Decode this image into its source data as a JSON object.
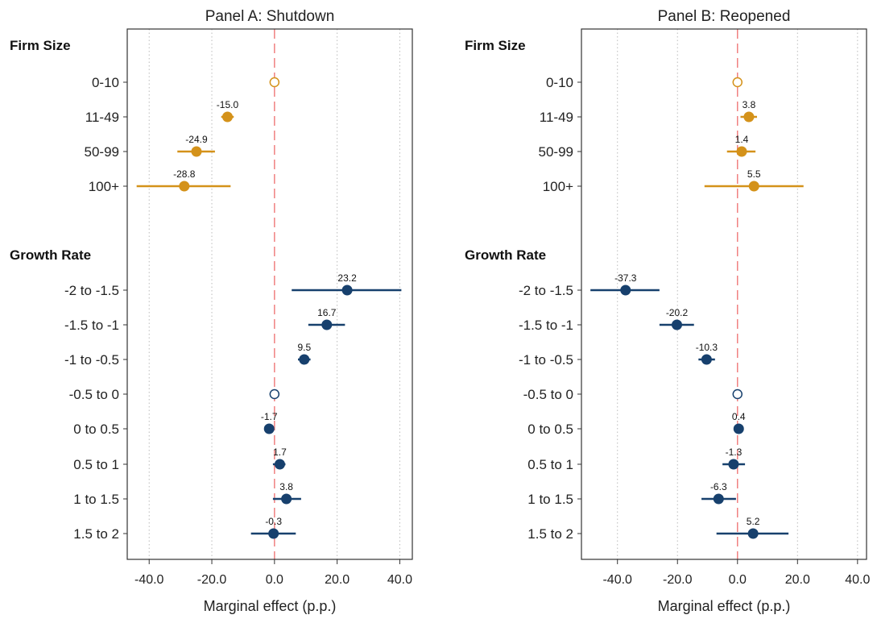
{
  "chart_data": [
    {
      "type": "scatter",
      "title": "Panel A: Shutdown",
      "xlabel": "Marginal effect (p.p.)",
      "xlim": [
        -47,
        44
      ],
      "xticks": [
        "-40.0",
        "-20.0",
        "0.0",
        "20.0",
        "40.0"
      ],
      "xtick_values": [
        -40,
        -20,
        0,
        20,
        40
      ],
      "reference_line": 0,
      "groups": [
        {
          "label": "Firm Size",
          "color": "#d4921a",
          "rows": [
            {
              "category": "0-10",
              "value": 0,
              "ci": [
                0,
                0
              ],
              "label": "",
              "reference": true
            },
            {
              "category": "11-49",
              "value": -15.0,
              "ci": [
                -17,
                -13
              ],
              "label": "-15.0",
              "reference": false
            },
            {
              "category": "50-99",
              "value": -24.9,
              "ci": [
                -31,
                -19
              ],
              "label": "-24.9",
              "reference": false
            },
            {
              "category": "100+",
              "value": -28.8,
              "ci": [
                -44,
                -14
              ],
              "label": "-28.8",
              "reference": false
            }
          ]
        },
        {
          "label": "Growth Rate",
          "color": "#17406d",
          "rows": [
            {
              "category": "-2 to -1.5",
              "value": 23.2,
              "ci": [
                5.5,
                40.5
              ],
              "label": "23.2",
              "reference": false
            },
            {
              "category": "-1.5 to -1",
              "value": 16.7,
              "ci": [
                10.8,
                22.5
              ],
              "label": "16.7",
              "reference": false
            },
            {
              "category": "-1 to -0.5",
              "value": 9.5,
              "ci": [
                7.5,
                11.5
              ],
              "label": "9.5",
              "reference": false
            },
            {
              "category": "-0.5 to 0",
              "value": 0,
              "ci": [
                0,
                0
              ],
              "label": "",
              "reference": true
            },
            {
              "category": "0 to 0.5",
              "value": -1.7,
              "ci": [
                -3,
                -0.4
              ],
              "label": "-1.7",
              "reference": false
            },
            {
              "category": "0.5 to 1",
              "value": 1.7,
              "ci": [
                -0.5,
                3.5
              ],
              "label": "1.7",
              "reference": false
            },
            {
              "category": "1 to 1.5",
              "value": 3.8,
              "ci": [
                -0.5,
                8.5
              ],
              "label": "3.8",
              "reference": false
            },
            {
              "category": "1.5 to 2",
              "value": -0.3,
              "ci": [
                -7.5,
                6.8
              ],
              "label": "-0.3",
              "reference": false
            }
          ]
        }
      ]
    },
    {
      "type": "scatter",
      "title": "Panel B: Reopened",
      "xlabel": "Marginal effect (p.p.)",
      "xlim": [
        -52,
        43
      ],
      "xticks": [
        "-40.0",
        "-20.0",
        "0.0",
        "20.0",
        "40.0"
      ],
      "xtick_values": [
        -40,
        -20,
        0,
        20,
        40
      ],
      "reference_line": 0,
      "groups": [
        {
          "label": "Firm Size",
          "color": "#d4921a",
          "rows": [
            {
              "category": "0-10",
              "value": 0,
              "ci": [
                0,
                0
              ],
              "label": "",
              "reference": true
            },
            {
              "category": "11-49",
              "value": 3.8,
              "ci": [
                1,
                6.5
              ],
              "label": "3.8",
              "reference": false
            },
            {
              "category": "50-99",
              "value": 1.4,
              "ci": [
                -3.5,
                6
              ],
              "label": "1.4",
              "reference": false
            },
            {
              "category": "100+",
              "value": 5.5,
              "ci": [
                -11,
                22
              ],
              "label": "5.5",
              "reference": false
            }
          ]
        },
        {
          "label": "Growth Rate",
          "color": "#17406d",
          "rows": [
            {
              "category": "-2 to -1.5",
              "value": -37.3,
              "ci": [
                -49,
                -26
              ],
              "label": "-37.3",
              "reference": false
            },
            {
              "category": "-1.5 to -1",
              "value": -20.2,
              "ci": [
                -26,
                -14.5
              ],
              "label": "-20.2",
              "reference": false
            },
            {
              "category": "-1 to -0.5",
              "value": -10.3,
              "ci": [
                -13,
                -7.5
              ],
              "label": "-10.3",
              "reference": false
            },
            {
              "category": "-0.5 to 0",
              "value": 0,
              "ci": [
                0,
                0
              ],
              "label": "",
              "reference": true
            },
            {
              "category": "0 to 0.5",
              "value": 0.4,
              "ci": [
                -1,
                1.8
              ],
              "label": "0.4",
              "reference": false
            },
            {
              "category": "0.5 to 1",
              "value": -1.3,
              "ci": [
                -5,
                2.5
              ],
              "label": "-1.3",
              "reference": false
            },
            {
              "category": "1 to 1.5",
              "value": -6.3,
              "ci": [
                -12,
                -0.5
              ],
              "label": "-6.3",
              "reference": false
            },
            {
              "category": "1.5 to 2",
              "value": 5.2,
              "ci": [
                -7,
                17
              ],
              "label": "5.2",
              "reference": false
            }
          ]
        }
      ]
    }
  ],
  "colors": {
    "reference_line": "#f08080",
    "gridline": "#bbbbbb",
    "frame": "#333333"
  }
}
